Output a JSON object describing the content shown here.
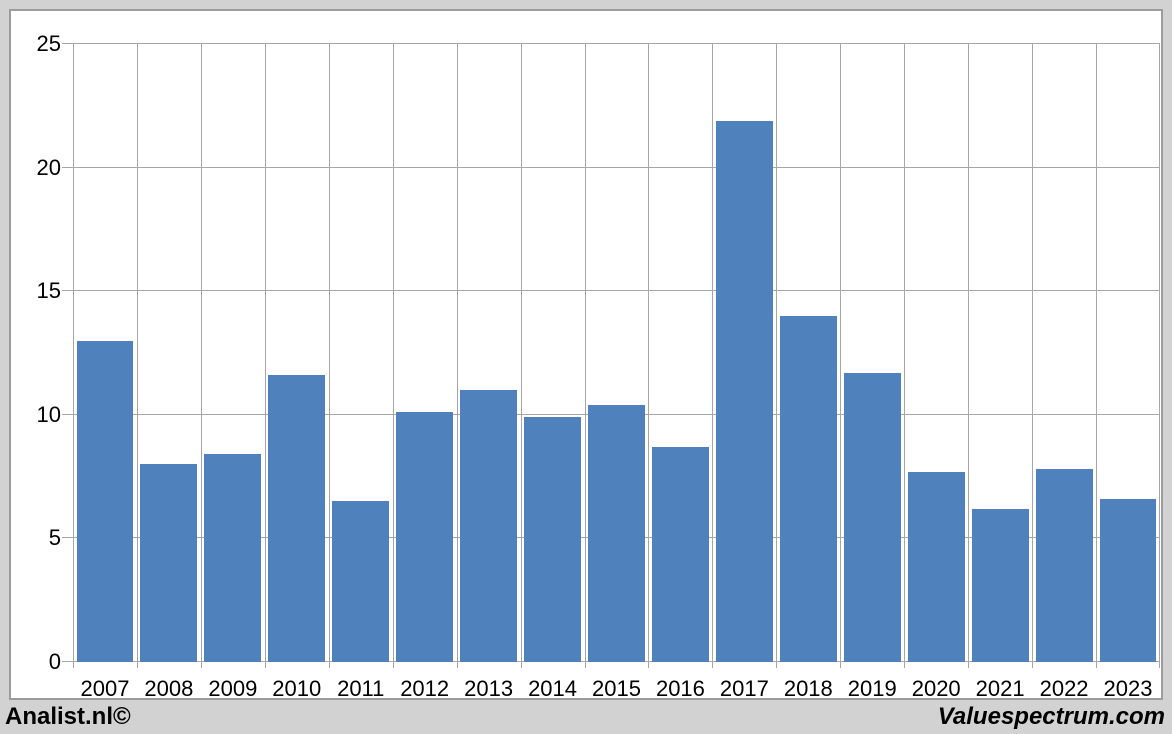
{
  "footer": {
    "left_brand": "Analist.nl©",
    "right_brand": "Valuespectrum.com"
  },
  "colors": {
    "bar": "#4F81BD",
    "grid": "#A6A6A6",
    "panel_border": "#9B9B9B",
    "frame_background": "#D2D2D2",
    "panel_background": "#FFFFFF",
    "text": "#000000"
  },
  "chart_data": {
    "type": "bar",
    "title": "",
    "xlabel": "",
    "ylabel": "",
    "categories": [
      "2007",
      "2008",
      "2009",
      "2010",
      "2011",
      "2012",
      "2013",
      "2014",
      "2015",
      "2016",
      "2017",
      "2018",
      "2019",
      "2020",
      "2021",
      "2022",
      "2023"
    ],
    "values": [
      13.0,
      8.0,
      8.4,
      11.6,
      6.5,
      10.1,
      11.0,
      9.9,
      10.4,
      8.7,
      21.9,
      14.0,
      11.7,
      7.7,
      6.2,
      7.8,
      6.6
    ],
    "ylim": [
      0,
      25
    ],
    "yticks": [
      0,
      5,
      10,
      15,
      20,
      25
    ],
    "grid": true,
    "vertical_gridlines": true,
    "legend_position": "none"
  }
}
